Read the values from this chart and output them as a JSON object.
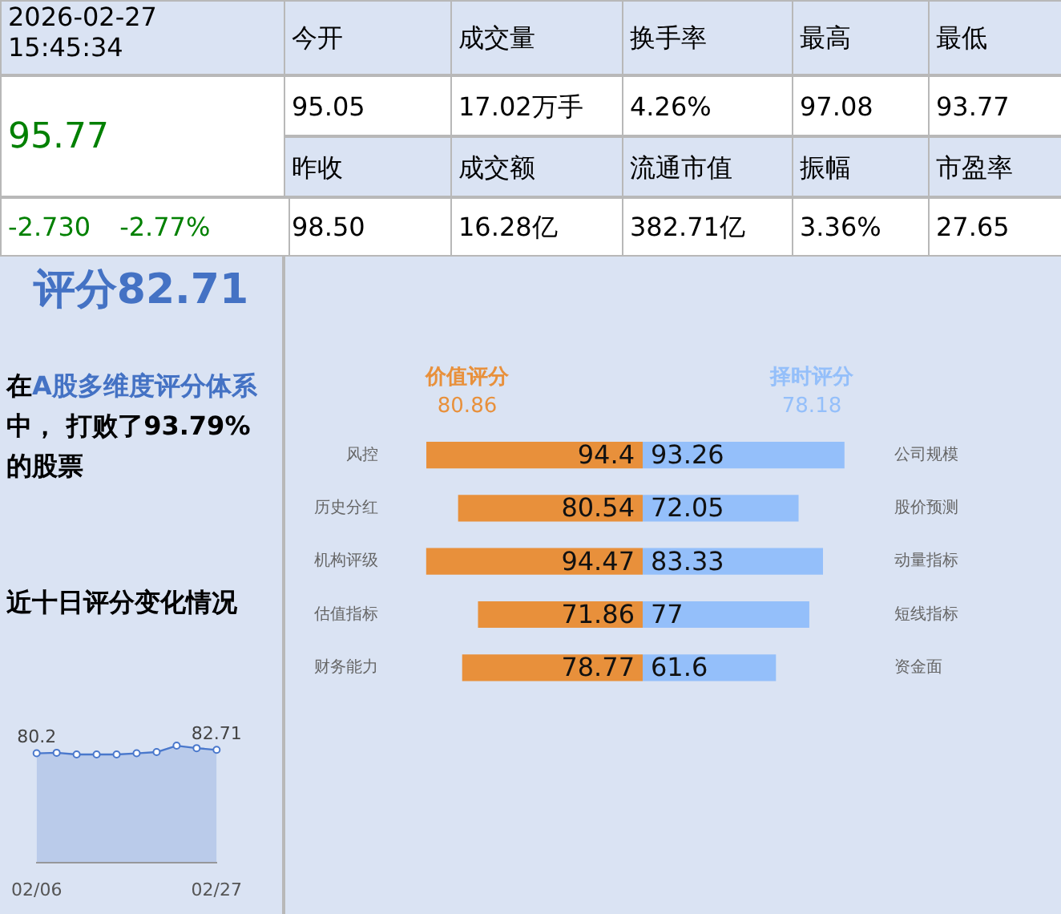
{
  "chart_data": [
    {
      "type": "other",
      "annotations": [
        "2026-02-27 15:45:34",
        "今开",
        "成交量",
        "换手率",
        "最高",
        "最低",
        "95.77",
        "95.05",
        "17.02万手",
        "4.26%",
        "97.08",
        "93.77",
        "昨收",
        "成交额",
        "流通市值",
        "振幅",
        "市盈率",
        "-2.730",
        "-2.77%",
        "98.50",
        "16.28亿",
        "382.71亿",
        "3.36%",
        "27.65",
        "评分82.71",
        "在",
        "A股多维度评分体系",
        "中， 打败了",
        "93.79%",
        "的股票"
      ]
    },
    {
      "type": "bar",
      "orientation": "horizontal",
      "title": "价值评分",
      "subtitle": "80.86",
      "color": "#e8903b",
      "data_labels": true,
      "categories": [
        "风控",
        "历史分红",
        "机构评级",
        "估值指标",
        "财务能力"
      ],
      "values": [
        94.4,
        80.54,
        94.47,
        71.86,
        78.77
      ]
    },
    {
      "type": "bar",
      "orientation": "horizontal",
      "title": "择时评分",
      "subtitle": "78.18",
      "color": "#94bffa",
      "data_labels": true,
      "categories": [
        "公司规模",
        "股价预测",
        "动量指标",
        "短线指标",
        "资金面"
      ],
      "values": [
        93.26,
        72.05,
        83.33,
        77,
        61.6
      ]
    },
    {
      "type": "area",
      "title": "近十日评分变化情况",
      "color": "#4a78cc",
      "marker": "circle",
      "tick_labels": "x",
      "categories": [
        "02/06",
        null,
        null,
        null,
        null,
        null,
        null,
        null,
        null,
        "02/27"
      ],
      "values": [
        80.2,
        80.6,
        79.4,
        79.4,
        79.4,
        80.2,
        81.1,
        85.8,
        84.0,
        82.71
      ],
      "value_labels": [
        "80.2",
        null,
        null,
        null,
        null,
        null,
        null,
        null,
        null,
        "82.71"
      ]
    }
  ]
}
